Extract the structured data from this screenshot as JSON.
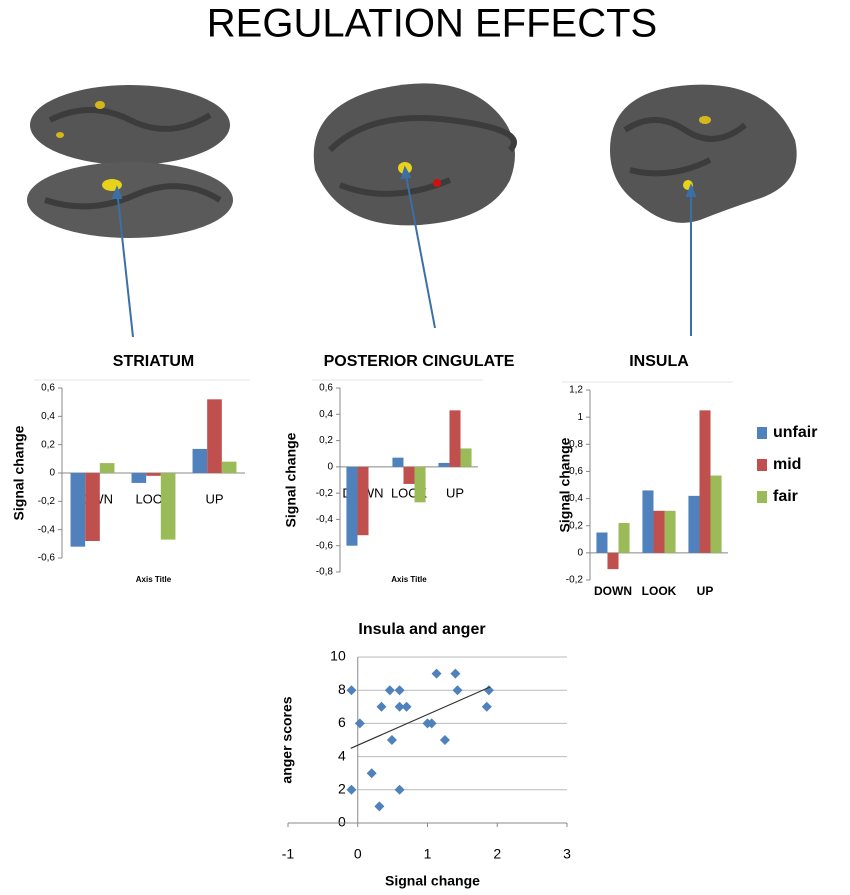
{
  "title": "REGULATION EFFECTS",
  "chart_data": [
    {
      "type": "bar",
      "title": "STRIATUM",
      "categories": [
        "DOWN",
        "LOOK",
        "UP"
      ],
      "series": [
        {
          "color": "#4f81bd",
          "values": [
            -0.52,
            -0.07,
            0.17
          ]
        },
        {
          "color": "#c0504d",
          "values": [
            -0.48,
            -0.02,
            0.52
          ]
        },
        {
          "color": "#9bbb59",
          "values": [
            0.07,
            -0.47,
            0.08
          ]
        }
      ],
      "ylim": [
        -0.6,
        0.6
      ],
      "yticks": [
        {
          "value": 0.6,
          "label": "0,6"
        },
        {
          "value": 0.4,
          "label": "0,4"
        },
        {
          "value": 0.2,
          "label": "0,2"
        },
        0,
        {
          "value": -0.2,
          "label": "-0,2"
        },
        {
          "value": -0.4,
          "label": "-0,4"
        },
        {
          "value": -0.6,
          "label": "-0,6"
        }
      ],
      "ylabel": "Signal change",
      "xlabel": "Axis Title"
    },
    {
      "type": "bar",
      "title": "POSTERIOR CINGULATE",
      "categories": [
        "DOWN",
        "LOOK",
        "UP"
      ],
      "series": [
        {
          "color": "#4f81bd",
          "values": [
            -0.6,
            0.07,
            0.03
          ]
        },
        {
          "color": "#c0504d",
          "values": [
            -0.52,
            -0.13,
            0.43
          ]
        },
        {
          "color": "#9bbb59",
          "values": [
            0,
            -0.27,
            0.14
          ]
        }
      ],
      "ylim": [
        -0.8,
        0.6
      ],
      "yticks": [
        {
          "value": 0.6,
          "label": "0,6"
        },
        {
          "value": 0.4,
          "label": "0,4"
        },
        {
          "value": 0.2,
          "label": "0,2"
        },
        0,
        {
          "value": -0.2,
          "label": "-0,2"
        },
        {
          "value": -0.4,
          "label": "-0,4"
        },
        {
          "value": -0.6,
          "label": "-0,6"
        },
        {
          "value": -0.8,
          "label": "-0,8"
        }
      ],
      "ylabel": "Signal change",
      "xlabel": "Axis Title"
    },
    {
      "type": "bar",
      "title": "INSULA",
      "categories": [
        "DOWN",
        "LOOK",
        "UP"
      ],
      "series": [
        {
          "name": "unfair",
          "color": "#4f81bd",
          "values": [
            0.15,
            0.46,
            0.42
          ]
        },
        {
          "name": "mid",
          "color": "#c0504d",
          "values": [
            -0.12,
            0.31,
            1.05
          ]
        },
        {
          "name": "fair",
          "color": "#9bbb59",
          "values": [
            0.22,
            0.31,
            0.57
          ]
        }
      ],
      "ylim": [
        -0.2,
        1.2
      ],
      "yticks": [
        {
          "value": 1.2,
          "label": "1,2"
        },
        1,
        {
          "value": 0.8,
          "label": "0,8"
        },
        {
          "value": 0.6,
          "label": "0,6"
        },
        {
          "value": 0.4,
          "label": "0,4"
        },
        {
          "value": 0.2,
          "label": "0,2"
        },
        0,
        {
          "value": -0.2,
          "label": "-0,2"
        }
      ],
      "ylabel": "Signal change",
      "legend": "right"
    },
    {
      "type": "scatter",
      "title": "Insula and anger",
      "color": "#4f81bd",
      "x": [
        -0.09,
        0.03,
        -0.09,
        0.2,
        0.34,
        0.46,
        0.49,
        0.31,
        0.6,
        0.6,
        0.6,
        0.7,
        1.0,
        1.06,
        1.13,
        1.25,
        1.4,
        1.43,
        1.85,
        1.88
      ],
      "values": [
        8,
        6,
        2,
        3,
        7,
        8,
        5,
        1,
        8,
        2,
        7,
        7,
        6,
        6,
        9,
        5,
        9,
        8,
        7,
        8
      ],
      "trendline": {
        "x": [
          -0.1,
          1.9
        ],
        "y": [
          4.5,
          8.2
        ]
      },
      "xlim": [
        -1,
        3
      ],
      "xticks": [
        -1,
        0,
        1,
        2,
        3
      ],
      "ylim": [
        0,
        10
      ],
      "yticks": [
        0,
        2,
        4,
        6,
        8,
        10
      ],
      "grid": true,
      "xlabel": "Signal change",
      "ylabel": "anger scores"
    }
  ]
}
